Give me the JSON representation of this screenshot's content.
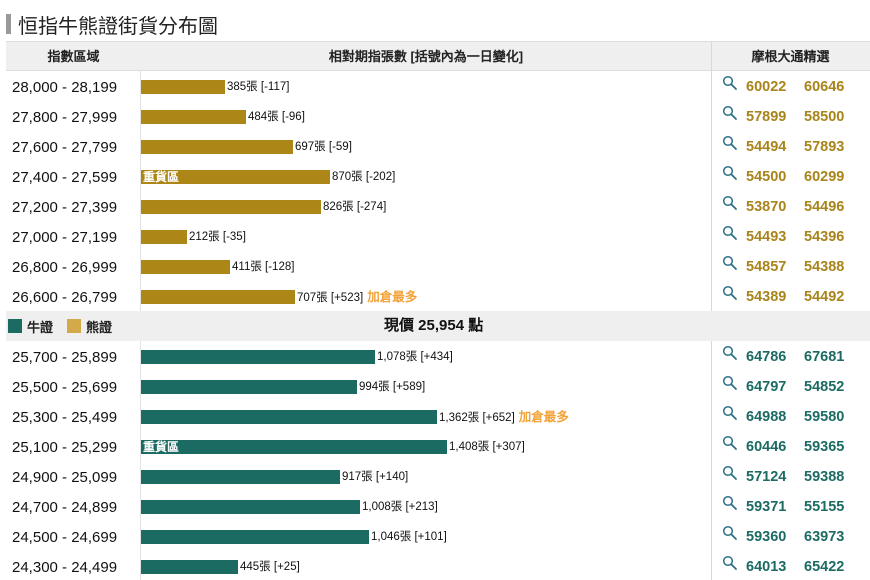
{
  "title": "恒指牛熊證街貨分布圖",
  "header": {
    "col_range": "指數區域",
    "col_bar": "相對期指張數 [括號內為一日變化]",
    "col_codes": "摩根大通精選"
  },
  "legend": {
    "bull": "牛證",
    "bear": "熊證"
  },
  "current_price_label": "現價 25,954 點",
  "colors": {
    "bear": "#ac8717",
    "bull": "#1c6b63",
    "most_added": "#f2a33a",
    "bear_swatch": "#d2aa4a"
  },
  "chart_data": {
    "type": "bar",
    "orientation": "horizontal",
    "current_price": 25954,
    "bear_rows": [
      {
        "range": "28,000 - 28,199",
        "contracts": 385,
        "change": -117,
        "label": "385張 [-117]",
        "codes": [
          "60022",
          "60646"
        ]
      },
      {
        "range": "27,800 - 27,999",
        "contracts": 484,
        "change": -96,
        "label": "484張 [-96]",
        "codes": [
          "57899",
          "58500"
        ]
      },
      {
        "range": "27,600 - 27,799",
        "contracts": 697,
        "change": -59,
        "label": "697張 [-59]",
        "codes": [
          "54494",
          "57893"
        ]
      },
      {
        "range": "27,400 - 27,599",
        "contracts": 870,
        "change": -202,
        "label": "870張 [-202]",
        "heavy": "重貨區",
        "codes": [
          "54500",
          "60299"
        ]
      },
      {
        "range": "27,200 - 27,399",
        "contracts": 826,
        "change": -274,
        "label": "826張 [-274]",
        "codes": [
          "53870",
          "54496"
        ]
      },
      {
        "range": "27,000 - 27,199",
        "contracts": 212,
        "change": -35,
        "label": "212張 [-35]",
        "codes": [
          "54493",
          "54396"
        ]
      },
      {
        "range": "26,800 - 26,999",
        "contracts": 411,
        "change": -128,
        "label": "411張 [-128]",
        "codes": [
          "54857",
          "54388"
        ]
      },
      {
        "range": "26,600 - 26,799",
        "contracts": 707,
        "change": 523,
        "label": "707張 [+523]",
        "most": "加倉最多",
        "codes": [
          "54389",
          "54492"
        ]
      }
    ],
    "bull_rows": [
      {
        "range": "25,700 - 25,899",
        "contracts": 1078,
        "change": 434,
        "label": "1,078張 [+434]",
        "codes": [
          "64786",
          "67681"
        ]
      },
      {
        "range": "25,500 - 25,699",
        "contracts": 994,
        "change": 589,
        "label": "994張 [+589]",
        "codes": [
          "64797",
          "54852"
        ]
      },
      {
        "range": "25,300 - 25,499",
        "contracts": 1362,
        "change": 652,
        "label": "1,362張 [+652]",
        "most": "加倉最多",
        "codes": [
          "64988",
          "59580"
        ]
      },
      {
        "range": "25,100 - 25,299",
        "contracts": 1408,
        "change": 307,
        "label": "1,408張 [+307]",
        "heavy": "重貨區",
        "codes": [
          "60446",
          "59365"
        ]
      },
      {
        "range": "24,900 - 25,099",
        "contracts": 917,
        "change": 140,
        "label": "917張 [+140]",
        "codes": [
          "57124",
          "59388"
        ]
      },
      {
        "range": "24,700 - 24,899",
        "contracts": 1008,
        "change": 213,
        "label": "1,008張 [+213]",
        "codes": [
          "59371",
          "55155"
        ]
      },
      {
        "range": "24,500 - 24,699",
        "contracts": 1046,
        "change": 101,
        "label": "1,046張 [+101]",
        "codes": [
          "59360",
          "63973"
        ]
      },
      {
        "range": "24,300 - 24,499",
        "contracts": 445,
        "change": 25,
        "label": "445張 [+25]",
        "codes": [
          "64013",
          "65422"
        ]
      }
    ]
  }
}
